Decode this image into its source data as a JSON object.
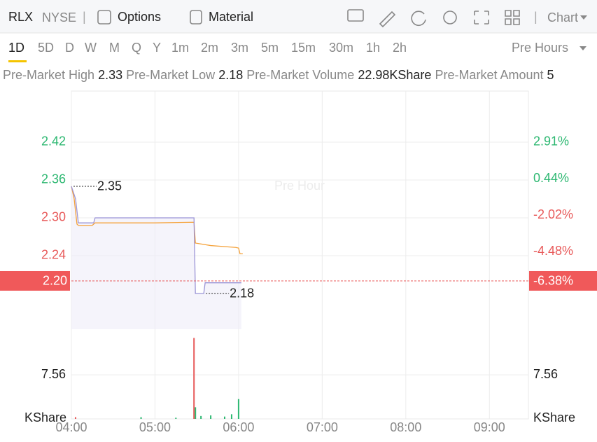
{
  "header": {
    "symbol": "RLX",
    "exchange": "NYSE",
    "separator": "|",
    "menu": [
      "Options",
      "Material"
    ],
    "chart_menu": "Chart"
  },
  "periods": [
    {
      "label": "1D",
      "selected": true
    },
    {
      "label": "5D"
    },
    {
      "label": "D"
    },
    {
      "label": "W"
    },
    {
      "label": "M"
    },
    {
      "label": "Q"
    },
    {
      "label": "Y"
    },
    {
      "label": "1m"
    },
    {
      "label": "2m"
    },
    {
      "label": "3m"
    },
    {
      "label": "5m"
    },
    {
      "label": "15m"
    },
    {
      "label": "30m"
    },
    {
      "label": "1h"
    },
    {
      "label": "2h"
    }
  ],
  "session": "Pre Hours",
  "stats": [
    {
      "label": "Pre-Market High",
      "value": "2.33"
    },
    {
      "label": "Pre-Market Low",
      "value": "2.18"
    },
    {
      "label": "Pre-Market Volume",
      "value": "22.98KShare"
    },
    {
      "label": "Pre-Market Amount",
      "value": "5"
    }
  ],
  "chart_data": {
    "type": "line",
    "watermark": "Pre Hour",
    "xlim": [
      "04:00",
      "09:28"
    ],
    "xticks": [
      "04:00",
      "05:00",
      "06:00",
      "07:00",
      "08:00",
      "09:00"
    ],
    "ylim": [
      2.1233,
      2.5011
    ],
    "yticks": [
      2.42,
      2.36,
      {
        "value": 2.3,
        "label": "2.30"
      },
      2.24
    ],
    "y2lim": [
      -9.71,
      6.36
    ],
    "y2ticks": [
      {
        "value": 2.91,
        "label": "2.91%"
      },
      {
        "value": 0.44,
        "label": "0.44%"
      },
      {
        "value": -2.02,
        "label": "-2.02%"
      },
      {
        "value": -4.48,
        "label": "-4.48%"
      }
    ],
    "up_color": "#2eb872",
    "down_color": "#e85a5a",
    "grid": true,
    "series": [
      {
        "color": "#f5a33c",
        "x": [
          "04:00",
          "04:02",
          "04:04",
          "04:05",
          "04:15",
          "04:17",
          "05:00",
          "05:28",
          "05:29",
          "05:40",
          "05:58",
          "06:00",
          "06:01",
          "06:03"
        ],
        "values": [
          2.35,
          2.33,
          2.29,
          2.288,
          2.288,
          2.292,
          2.292,
          2.293,
          2.26,
          2.256,
          2.253,
          2.252,
          2.243,
          2.243
        ]
      },
      {
        "color": "#9b94d6",
        "x": [
          "04:00",
          "04:03",
          "04:05",
          "04:16",
          "04:17",
          "05:28",
          "05:29",
          "05:35",
          "05:36",
          "06:02"
        ],
        "values": [
          2.35,
          2.33,
          2.292,
          2.292,
          2.3,
          2.3,
          2.18,
          2.18,
          2.197,
          2.197
        ]
      }
    ],
    "high_marker": {
      "x": "04:00",
      "value": 2.35
    },
    "low_marker": {
      "x": "05:35",
      "value": 2.18
    },
    "current": {
      "value": 2.2,
      "label": "2.20",
      "pct_label": "-6.38%"
    },
    "volume": {
      "unit": "KShare",
      "vlim": [
        0,
        15.4
      ],
      "vticks": [
        7.56
      ],
      "x": [
        "04:03",
        "04:50",
        "05:15",
        "05:28",
        "05:29",
        "05:33",
        "05:40",
        "05:50",
        "05:55",
        "06:00"
      ],
      "values": [
        0.3,
        0.3,
        0.2,
        13.9,
        2.0,
        0.5,
        0.6,
        0.4,
        0.8,
        3.4
      ],
      "colors": [
        "#e85a5a",
        "#2eb872",
        "#2eb872",
        "#e85a5a",
        "#2eb872",
        "#2eb872",
        "#2eb872",
        "#2eb872",
        "#2eb872",
        "#2eb872"
      ]
    }
  }
}
